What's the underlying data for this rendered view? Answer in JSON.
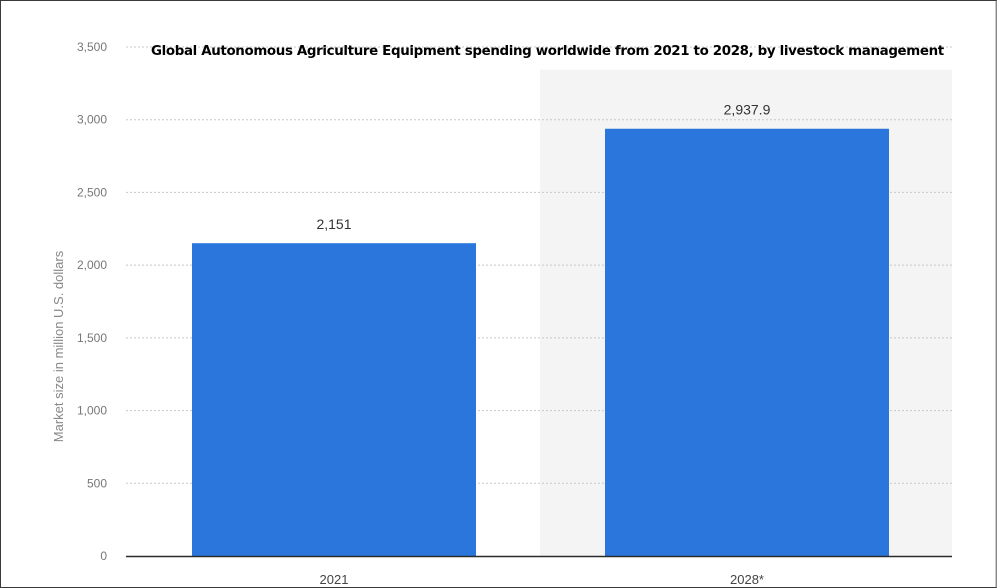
{
  "chart_data": {
    "type": "bar",
    "title": "Global Autonomous Agriculture Equipment spending worldwide from 2021 to 2028, by livestock management",
    "categories": [
      "2021",
      "2028*"
    ],
    "values": [
      2151,
      2937.9
    ],
    "value_labels": [
      "2,151",
      "2,937.9"
    ],
    "xlabel": "",
    "ylabel": "Market size in million U.S. dollars",
    "ylim": [
      0,
      3500
    ],
    "yticks": [
      0,
      500,
      1000,
      1500,
      2000,
      2500,
      3000,
      3500
    ],
    "ytick_labels": [
      "0",
      "500",
      "1,000",
      "1,500",
      "2,000",
      "2,500",
      "3,000",
      "3,500"
    ],
    "grid": true,
    "bar_color": "#2a76dc",
    "highlight_band_color": "#f4f4f4",
    "gridline_color": "#c8c8c8",
    "axis_color": "#2b2b2b"
  }
}
